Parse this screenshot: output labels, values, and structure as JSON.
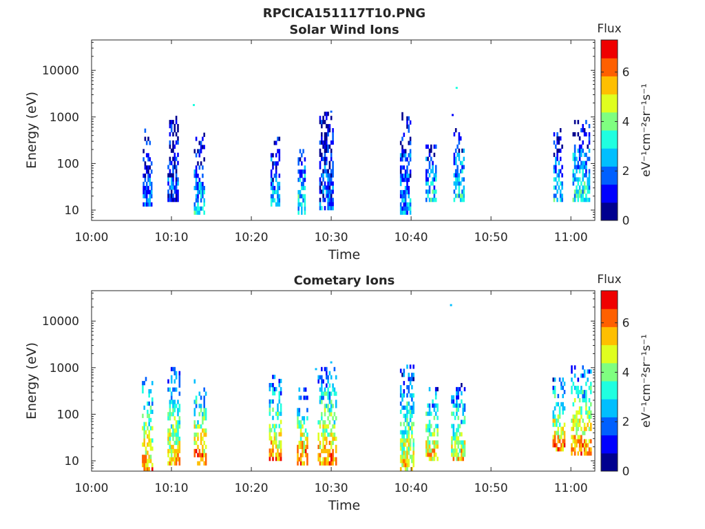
{
  "figure": {
    "title": "RPCICA151117T10.PNG"
  },
  "chart_data": [
    {
      "type": "heatmap",
      "title": "Solar Wind Ions",
      "xlabel": "Time",
      "ylabel": "Energy (eV)",
      "x_ticks": [
        "10:00",
        "10:10",
        "10:20",
        "10:30",
        "10:40",
        "10:50",
        "11:00"
      ],
      "x_tick_minutes": [
        0,
        10,
        20,
        30,
        40,
        50,
        60
      ],
      "xlim_minutes": [
        0,
        63
      ],
      "y_scale": "log",
      "ylim": [
        6,
        45000
      ],
      "y_ticks": [
        "10",
        "100",
        "1000",
        "10000"
      ],
      "y_tick_values": [
        10,
        100,
        1000,
        10000
      ],
      "colorbar": {
        "label": "Flux",
        "units": "eV⁻¹cm⁻²sr⁻¹s⁻¹",
        "range": [
          0,
          7.3
        ],
        "ticks": [
          "0",
          "2",
          "4",
          "6"
        ],
        "colormap": "jet"
      },
      "clusters": [
        {
          "t": [
            6.4,
            7.5
          ],
          "e": [
            12,
            550
          ],
          "bias": 0.25
        },
        {
          "t": [
            9.5,
            10.8
          ],
          "e": [
            15,
            950
          ],
          "bias": 0.2
        },
        {
          "t": [
            12.8,
            14.0
          ],
          "e": [
            8,
            450
          ],
          "bias": 0.35
        },
        {
          "t": [
            22.4,
            23.5
          ],
          "e": [
            12,
            320
          ],
          "bias": 0.35
        },
        {
          "t": [
            25.8,
            26.6
          ],
          "e": [
            8,
            220
          ],
          "bias": 0.45
        },
        {
          "t": [
            28.5,
            30.2
          ],
          "e": [
            10,
            1300
          ],
          "bias": 0.25
        },
        {
          "t": [
            38.6,
            40.0
          ],
          "e": [
            8,
            1200
          ],
          "bias": 0.3
        },
        {
          "t": [
            41.8,
            43.2
          ],
          "e": [
            15,
            220
          ],
          "bias": 0.4
        },
        {
          "t": [
            45.3,
            46.6
          ],
          "e": [
            15,
            550
          ],
          "bias": 0.45
        },
        {
          "t": [
            57.8,
            59.0
          ],
          "e": [
            15,
            480
          ],
          "bias": 0.4
        },
        {
          "t": [
            60.2,
            62.3
          ],
          "e": [
            15,
            750
          ],
          "bias": 0.45
        }
      ],
      "isolated": [
        {
          "t": 12.8,
          "e": 1800,
          "level": 4
        },
        {
          "t": 45.2,
          "e": 1100,
          "level": 1
        },
        {
          "t": 45.7,
          "e": 4200,
          "level": 4
        },
        {
          "t": 30.0,
          "e": 1300,
          "level": 2
        }
      ]
    },
    {
      "type": "heatmap",
      "title": "Cometary Ions",
      "xlabel": "Time",
      "ylabel": "Energy (eV)",
      "x_ticks": [
        "10:00",
        "10:10",
        "10:20",
        "10:30",
        "10:40",
        "10:50",
        "11:00"
      ],
      "x_tick_minutes": [
        0,
        10,
        20,
        30,
        40,
        50,
        60
      ],
      "xlim_minutes": [
        0,
        63
      ],
      "y_scale": "log",
      "ylim": [
        6,
        45000
      ],
      "y_ticks": [
        "10",
        "100",
        "1000",
        "10000"
      ],
      "y_tick_values": [
        10,
        100,
        1000,
        10000
      ],
      "colorbar": {
        "label": "Flux",
        "units": "eV⁻¹cm⁻²sr⁻¹s⁻¹",
        "range": [
          0,
          7.3
        ],
        "ticks": [
          "0",
          "2",
          "4",
          "6"
        ],
        "colormap": "jet"
      },
      "clusters": [
        {
          "t": [
            6.3,
            7.6
          ],
          "e": [
            6,
            520
          ],
          "bias": 0.8
        },
        {
          "t": [
            9.5,
            11.0
          ],
          "e": [
            8,
            850
          ],
          "bias": 0.75
        },
        {
          "t": [
            12.8,
            14.3
          ],
          "e": [
            8,
            550
          ],
          "bias": 0.85
        },
        {
          "t": [
            22.2,
            23.7
          ],
          "e": [
            10,
            580
          ],
          "bias": 0.8
        },
        {
          "t": [
            25.7,
            27.0
          ],
          "e": [
            8,
            330
          ],
          "bias": 0.85
        },
        {
          "t": [
            28.3,
            30.5
          ],
          "e": [
            8,
            950
          ],
          "bias": 0.8
        },
        {
          "t": [
            38.6,
            40.3
          ],
          "e": [
            6,
            1000
          ],
          "bias": 0.7
        },
        {
          "t": [
            41.8,
            43.4
          ],
          "e": [
            10,
            330
          ],
          "bias": 0.75
        },
        {
          "t": [
            45.0,
            46.8
          ],
          "e": [
            10,
            450
          ],
          "bias": 0.7
        },
        {
          "t": [
            57.7,
            59.3
          ],
          "e": [
            16,
            580
          ],
          "bias": 0.8
        },
        {
          "t": [
            60.0,
            62.5
          ],
          "e": [
            13,
            1050
          ],
          "bias": 0.85
        }
      ],
      "isolated": [
        {
          "t": 45.0,
          "e": 22000,
          "level": 3
        },
        {
          "t": 30.0,
          "e": 1300,
          "level": 3
        },
        {
          "t": 28.1,
          "e": 930,
          "level": 3
        }
      ]
    }
  ]
}
